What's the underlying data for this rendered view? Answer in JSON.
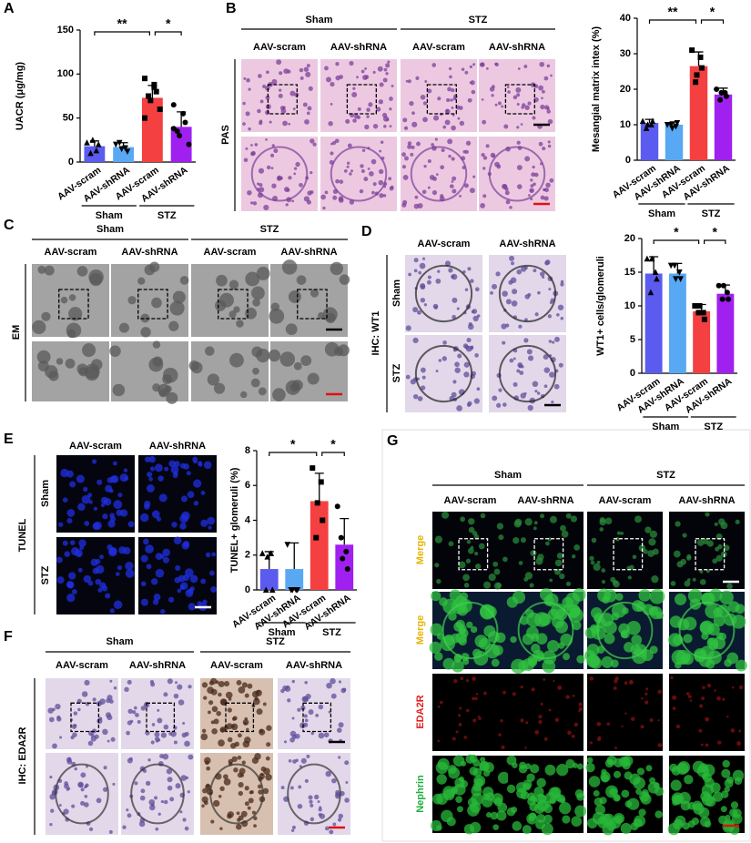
{
  "panels": {
    "A": {
      "letter": "A"
    },
    "B": {
      "letter": "B",
      "groups": [
        "Sham",
        "STZ"
      ],
      "columns": [
        "AAV-scram",
        "AAV-shRNA",
        "AAV-scram",
        "AAV-shRNA"
      ],
      "stain": "PAS"
    },
    "C": {
      "letter": "C",
      "groups": [
        "Sham",
        "STZ"
      ],
      "columns": [
        "AAV-scram",
        "AAV-shRNA",
        "AAV-scram",
        "AAV-shRNA"
      ],
      "stain": "EM"
    },
    "D": {
      "letter": "D",
      "columns": [
        "AAV-scram",
        "AAV-shRNA"
      ],
      "rows": [
        "Sham",
        "STZ"
      ],
      "stain": "IHC: WT1"
    },
    "E": {
      "letter": "E",
      "columns": [
        "AAV-scram",
        "AAV-shRNA"
      ],
      "rows": [
        "Sham",
        "STZ"
      ],
      "stain": "TUNEL"
    },
    "F": {
      "letter": "F",
      "groups": [
        "Sham",
        "STZ"
      ],
      "columns": [
        "AAV-scram",
        "AAV-shRNA",
        "AAV-scram",
        "AAV-shRNA"
      ],
      "stain": "IHC: EDA2R"
    },
    "G": {
      "letter": "G",
      "groups": [
        "Sham",
        "STZ"
      ],
      "columns": [
        "AAV-scram",
        "AAV-shRNA",
        "AAV-scram",
        "AAV-shRNA"
      ],
      "rows": [
        "Merge",
        "Merge",
        "EDA2R",
        "Nephrin"
      ],
      "row_colors": [
        "#e8b400",
        "#e8b400",
        "#e02020",
        "#1fae3c"
      ]
    }
  },
  "chart_data": [
    {
      "type": "bar",
      "ylabel": "UACR (μg/mg)",
      "categories": [
        "AAV-scram",
        "AAV-shRNA",
        "AAV-scram",
        "AAV-shRNA"
      ],
      "groups": [
        "Sham",
        "STZ"
      ],
      "values": [
        18,
        17,
        73,
        40
      ],
      "errors": [
        6,
        5,
        14,
        17
      ],
      "colors": [
        "#5b5bf0",
        "#58a8f4",
        "#f44040",
        "#a020f0"
      ],
      "points": [
        [
          22,
          13,
          20,
          10,
          25
        ],
        [
          20,
          16,
          12,
          22,
          15
        ],
        [
          95,
          88,
          80,
          75,
          70,
          60,
          50,
          85
        ],
        [
          65,
          55,
          45,
          35,
          30,
          20,
          38
        ]
      ],
      "annotations": [
        "**",
        "*"
      ],
      "ylim": [
        0,
        150
      ],
      "yticks": [
        0,
        50,
        100,
        150
      ]
    },
    {
      "type": "bar",
      "ylabel": "Mesangial matrix intex (%)",
      "categories": [
        "AAV-scram",
        "AAV-shRNA",
        "AAV-scram",
        "AAV-shRNA"
      ],
      "groups": [
        "Sham",
        "STZ"
      ],
      "values": [
        10.5,
        10,
        26.5,
        18.5
      ],
      "errors": [
        1,
        0.8,
        4,
        1.8
      ],
      "colors": [
        "#5b5bf0",
        "#58a8f4",
        "#f44040",
        "#a020f0"
      ],
      "points": [
        [
          11,
          10,
          11,
          9,
          10
        ],
        [
          10,
          9.5,
          10.5,
          10,
          9
        ],
        [
          31,
          29,
          26,
          22,
          24
        ],
        [
          20,
          19,
          18,
          17,
          19
        ]
      ],
      "annotations": [
        "**",
        "*"
      ],
      "ylim": [
        0,
        40
      ],
      "yticks": [
        0,
        10,
        20,
        30,
        40
      ]
    },
    {
      "type": "bar",
      "ylabel": "WT1+ cells/glomeruli",
      "categories": [
        "AAV-scram",
        "AAV-shRNA",
        "AAV-scram",
        "AAV-shRNA"
      ],
      "groups": [
        "Sham",
        "STZ"
      ],
      "values": [
        14.8,
        14.8,
        9.2,
        11.8
      ],
      "errors": [
        2.5,
        1.5,
        1,
        1.3
      ],
      "colors": [
        "#5b5bf0",
        "#58a8f4",
        "#f44040",
        "#a020f0"
      ],
      "points": [
        [
          17,
          15,
          14,
          12,
          17
        ],
        [
          16,
          15,
          14,
          16,
          14
        ],
        [
          10,
          9,
          8,
          9,
          10
        ],
        [
          13,
          12,
          11,
          11,
          13
        ]
      ],
      "annotations": [
        "*",
        "*"
      ],
      "ylim": [
        0,
        20
      ],
      "yticks": [
        0,
        5,
        10,
        15,
        20
      ]
    },
    {
      "type": "bar",
      "ylabel": "TUNEL+ glomeruli (%)",
      "categories": [
        "AAV-scram",
        "AAV-shRNA",
        "AAV-scram",
        "AAV-shRNA"
      ],
      "groups": [
        "Sham",
        "STZ"
      ],
      "values": [
        1.2,
        1.2,
        5.1,
        2.6
      ],
      "errors": [
        1,
        1.5,
        1.6,
        1.5
      ],
      "colors": [
        "#5b5bf0",
        "#58a8f4",
        "#f44040",
        "#a020f0"
      ],
      "points": [
        [
          2.1,
          2.1,
          0,
          0,
          1.9
        ],
        [
          2.6,
          0,
          0,
          0,
          0
        ],
        [
          7,
          6.2,
          4,
          3,
          5
        ],
        [
          4.8,
          2.2,
          1.2,
          3,
          1.8
        ]
      ],
      "annotations": [
        "*",
        "*"
      ],
      "ylim": [
        0,
        8
      ],
      "yticks": [
        0,
        2,
        4,
        6,
        8
      ]
    }
  ]
}
